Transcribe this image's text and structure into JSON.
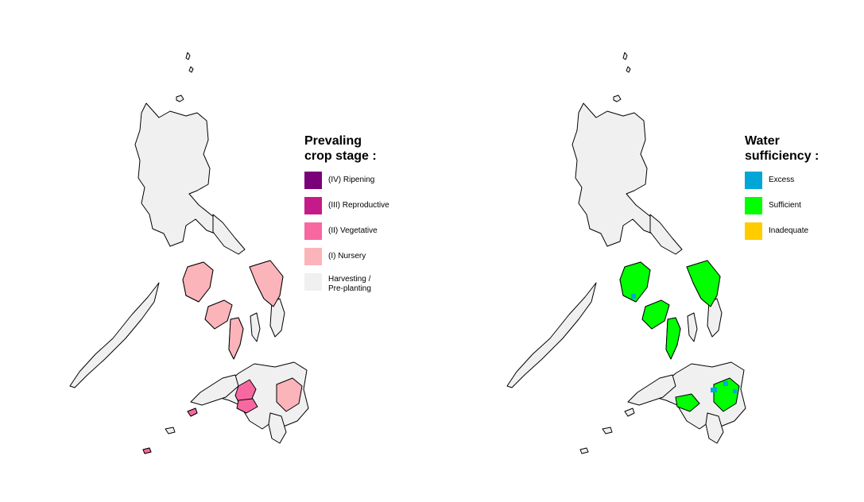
{
  "maps": [
    {
      "legend": {
        "title_line1": "Prevaling",
        "title_line2": "crop stage :",
        "items": [
          {
            "label_line1": "(IV) Ripening",
            "label_line2": "",
            "color": "#7a0177"
          },
          {
            "label_line1": "(III) Reproductive",
            "label_line2": "",
            "color": "#c51b8a"
          },
          {
            "label_line1": "(II) Vegetative",
            "label_line2": "",
            "color": "#f768a1"
          },
          {
            "label_line1": "(I) Nursery",
            "label_line2": "",
            "color": "#fbb4b9"
          },
          {
            "label_line1": "Harvesting /",
            "label_line2": "Pre-planting",
            "color": "#f0f0f0"
          }
        ]
      }
    },
    {
      "legend": {
        "title_line1": "Water",
        "title_line2": "sufficiency :",
        "items": [
          {
            "label_line1": "Excess",
            "label_line2": "",
            "color": "#00a6d6"
          },
          {
            "label_line1": "Sufficient",
            "label_line2": "",
            "color": "#00ff00"
          },
          {
            "label_line1": "Inadequate",
            "label_line2": "",
            "color": "#ffcc00"
          }
        ]
      }
    }
  ],
  "colors": {
    "base_land": "#f0f0f0",
    "outline": "#000000"
  }
}
